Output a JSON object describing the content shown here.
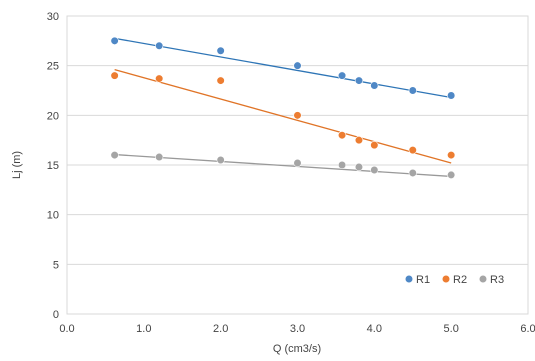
{
  "chart_data": {
    "type": "scatter",
    "title": "",
    "xlabel": "Q (cm3/s)",
    "ylabel": "Lj (m)",
    "xlim": [
      0,
      6
    ],
    "ylim": [
      0,
      30
    ],
    "x_ticks": [
      "0.0",
      "1.0",
      "2.0",
      "3.0",
      "4.0",
      "5.0",
      "6.0"
    ],
    "y_ticks": [
      "0",
      "5",
      "10",
      "15",
      "20",
      "25",
      "30"
    ],
    "grid": "horizontal",
    "legend_position": "bottom-right",
    "series": [
      {
        "name": "R1",
        "color": "#4f88c6",
        "line_color": "#2e75b6",
        "points": [
          [
            0.62,
            27.5
          ],
          [
            1.2,
            27.0
          ],
          [
            2.0,
            26.5
          ],
          [
            3.0,
            25.0
          ],
          [
            3.58,
            24.0
          ],
          [
            3.8,
            23.5
          ],
          [
            4.0,
            23.0
          ],
          [
            4.5,
            22.5
          ],
          [
            5.0,
            22.0
          ]
        ],
        "trendline": [
          [
            0.62,
            27.75
          ],
          [
            5.0,
            21.8
          ]
        ]
      },
      {
        "name": "R2",
        "color": "#ed7d31",
        "line_color": "#e07427",
        "points": [
          [
            0.62,
            24.0
          ],
          [
            1.2,
            23.7
          ],
          [
            2.0,
            23.5
          ],
          [
            3.0,
            20.0
          ],
          [
            3.58,
            18.0
          ],
          [
            3.8,
            17.5
          ],
          [
            4.0,
            17.0
          ],
          [
            4.5,
            16.5
          ],
          [
            5.0,
            16.0
          ]
        ],
        "trendline": [
          [
            0.62,
            24.6
          ],
          [
            5.0,
            15.2
          ]
        ]
      },
      {
        "name": "R3",
        "color": "#a5a5a5",
        "line_color": "#999999",
        "points": [
          [
            0.62,
            16.0
          ],
          [
            1.2,
            15.8
          ],
          [
            2.0,
            15.5
          ],
          [
            3.0,
            15.2
          ],
          [
            3.58,
            15.0
          ],
          [
            3.8,
            14.8
          ],
          [
            4.0,
            14.5
          ],
          [
            4.5,
            14.2
          ],
          [
            5.0,
            14.0
          ]
        ],
        "trendline": [
          [
            0.62,
            16.05
          ],
          [
            5.0,
            13.85
          ]
        ]
      }
    ]
  }
}
